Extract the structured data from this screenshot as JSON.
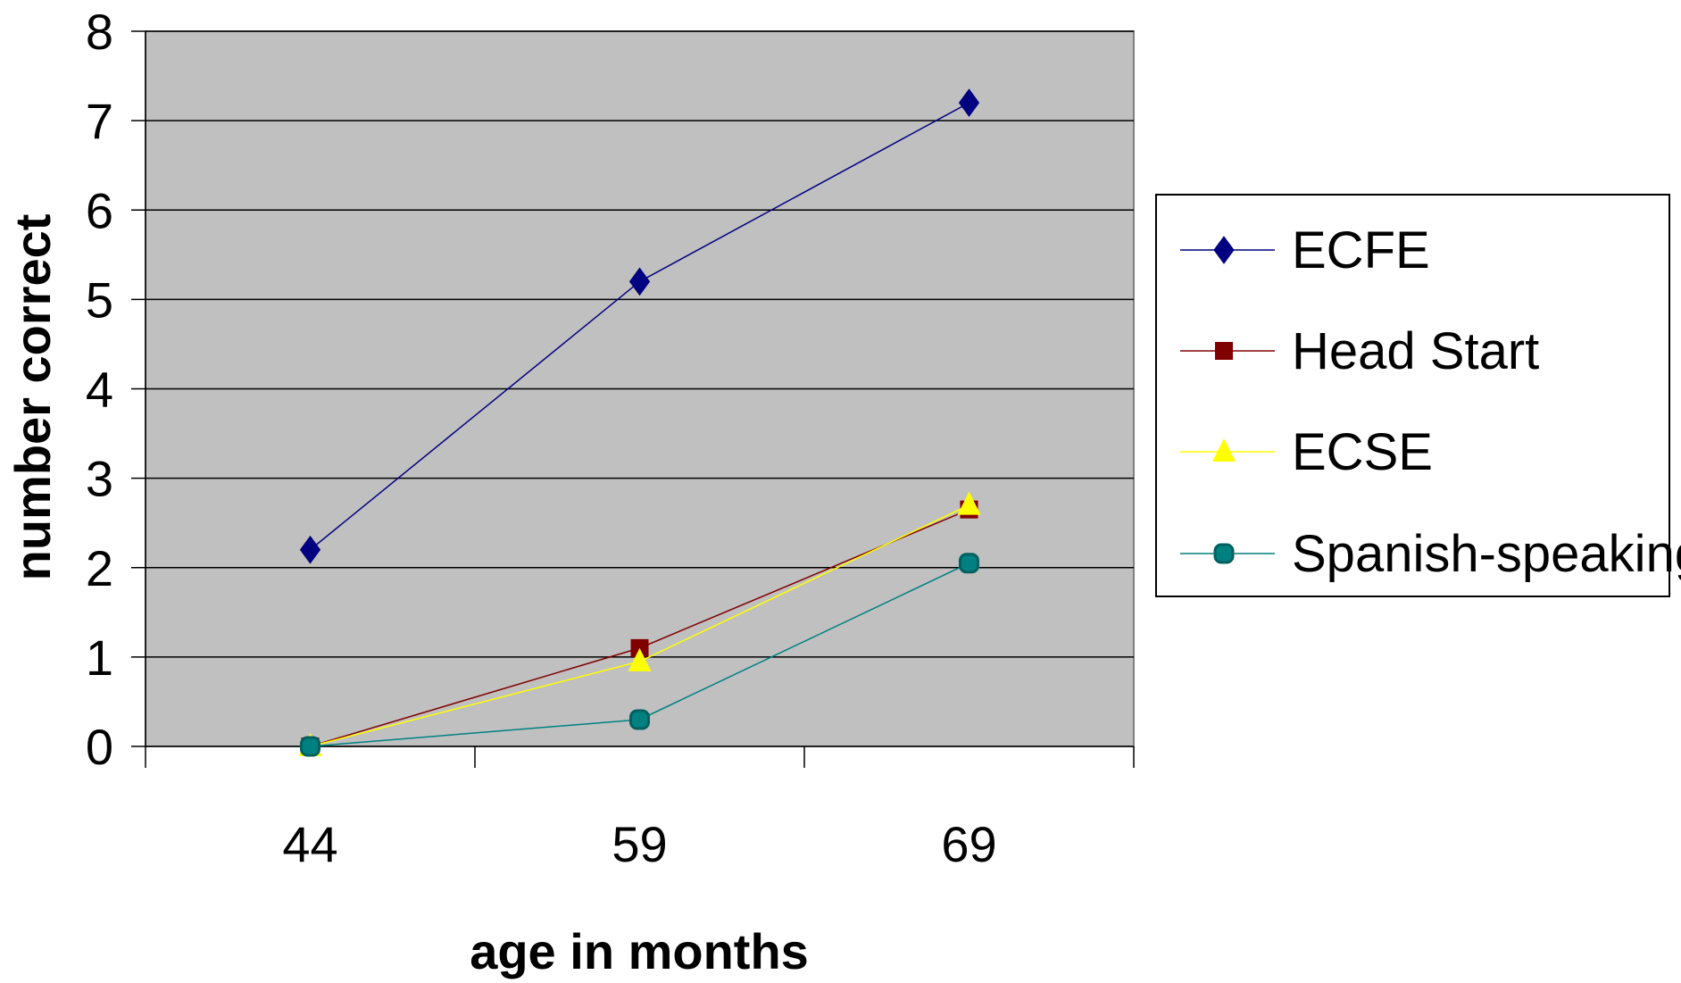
{
  "chart_data": {
    "type": "line",
    "title": "",
    "xlabel": "age in months",
    "ylabel": "number correct",
    "categories": [
      "44",
      "59",
      "69"
    ],
    "ylim": [
      0,
      8
    ],
    "yticks": [
      "0",
      "1",
      "2",
      "3",
      "4",
      "5",
      "6",
      "7",
      "8"
    ],
    "grid": true,
    "legend_position": "right",
    "plot_background": "#c0c0c0",
    "series": [
      {
        "name": "ECFE",
        "values": [
          2.2,
          5.2,
          7.2
        ],
        "color": "#000080",
        "marker": "diamond"
      },
      {
        "name": "Head Start",
        "values": [
          0.0,
          1.1,
          2.65
        ],
        "color": "#800000",
        "marker": "square"
      },
      {
        "name": "ECSE",
        "values": [
          0.0,
          0.95,
          2.7
        ],
        "color": "#ffff00",
        "marker": "triangle"
      },
      {
        "name": "Spanish-speaking",
        "values": [
          0.0,
          0.3,
          2.05
        ],
        "color": "#008080",
        "marker": "circle-square"
      }
    ]
  }
}
